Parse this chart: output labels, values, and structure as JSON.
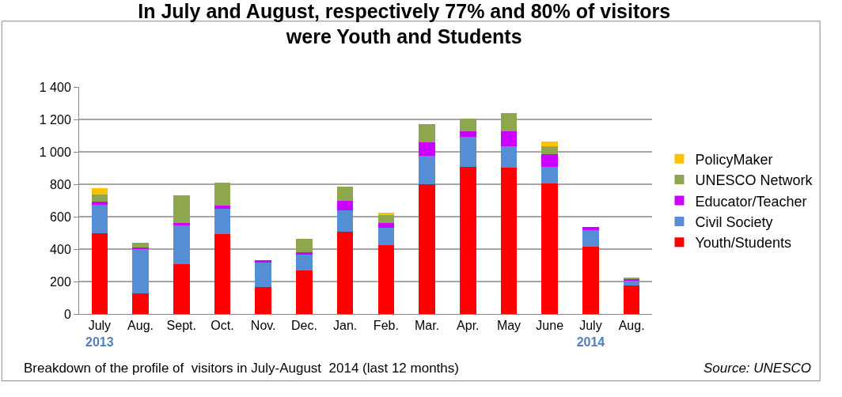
{
  "chart_data": {
    "type": "bar",
    "stacked": true,
    "title": "In July and August, respectively 77% and 80% of visitors\nwere Youth and Students",
    "categories": [
      "July\n2013",
      "Aug.",
      "Sept.",
      "Oct.",
      "Nov.",
      "Dec.",
      "Jan.",
      "Feb.",
      "Mar.",
      "Apr.",
      "May",
      "June",
      "July\n2014",
      "Aug."
    ],
    "series": [
      {
        "name": "Youth/Students",
        "color": "#ff0000",
        "values": [
          500,
          127,
          306,
          493,
          168,
          269,
          505,
          425,
          800,
          908,
          904,
          804,
          415,
          176
        ]
      },
      {
        "name": "Civil Society",
        "color": "#558ed5",
        "values": [
          175,
          273,
          239,
          155,
          148,
          99,
          133,
          109,
          178,
          183,
          130,
          101,
          104,
          31
        ]
      },
      {
        "name": "Educator/Teacher",
        "color": "#cc00ff",
        "values": [
          19,
          10,
          15,
          21,
          16,
          11,
          59,
          26,
          83,
          34,
          93,
          82,
          20,
          8
        ]
      },
      {
        "name": "UNESCO Network",
        "color": "#8ea64e",
        "values": [
          42,
          28,
          171,
          140,
          null,
          83,
          89,
          51,
          111,
          78,
          114,
          48,
          null,
          8
        ]
      },
      {
        "name": "PolicyMaker",
        "color": "#ffc000",
        "values": [
          39,
          null,
          null,
          null,
          null,
          null,
          null,
          13,
          null,
          null,
          null,
          30,
          null,
          null
        ]
      }
    ],
    "ylim": [
      0,
      1400
    ],
    "yticks": [
      0,
      200,
      400,
      600,
      800,
      {
        "value": 1000,
        "label": "1 000"
      },
      {
        "value": 1200,
        "label": "1 200"
      },
      {
        "value": 1400,
        "label": "1 400"
      }
    ],
    "grid": "y",
    "legend": "right",
    "annotations": [
      "Breakdown of the profile of  visitors in July-August  2014 (last 12 months)",
      "Source: UNESCO"
    ]
  }
}
